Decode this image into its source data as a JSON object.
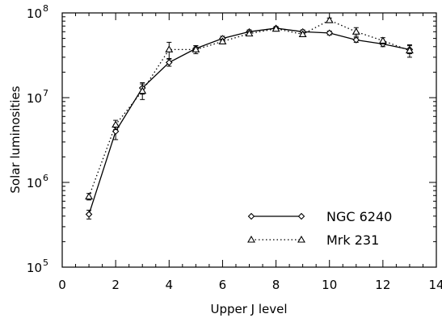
{
  "chart_data": {
    "type": "line",
    "xlabel": "Upper J level",
    "ylabel": "Solar luminosities",
    "xlim": [
      0,
      14
    ],
    "ylim": [
      100000,
      100000000
    ],
    "yscale": "log",
    "x_ticks": [
      "0",
      "2",
      "4",
      "6",
      "8",
      "10",
      "12",
      "14"
    ],
    "y_ticks": [
      {
        "base": "10",
        "exp": "5"
      },
      {
        "base": "10",
        "exp": "6"
      },
      {
        "base": "10",
        "exp": "7"
      },
      {
        "base": "10",
        "exp": "8"
      }
    ],
    "grid": false,
    "legend_position": "bottom-right",
    "series": [
      {
        "name": "NGC 6240",
        "marker": "diamond",
        "line_style": "solid",
        "x": [
          1,
          2,
          3,
          4,
          5,
          6,
          7,
          8,
          9,
          10,
          11,
          12,
          13
        ],
        "y": [
          420000,
          4000000,
          13000000,
          26000000,
          38000000,
          50000000,
          60000000,
          66000000,
          60000000,
          58000000,
          48000000,
          43000000,
          37000000
        ],
        "err": [
          50000,
          800000,
          2000000,
          2500000,
          3000000,
          3000000,
          3000000,
          3000000,
          3000000,
          3000000,
          3000000,
          3000000,
          4000000
        ]
      },
      {
        "name": "Mrk 231",
        "marker": "triangle",
        "line_style": "dotted",
        "x": [
          1,
          2,
          3,
          4,
          5,
          6,
          7,
          8,
          9,
          10,
          11,
          12,
          13
        ],
        "y": [
          680000,
          4800000,
          12000000,
          37000000,
          37000000,
          46000000,
          57000000,
          65000000,
          56000000,
          82000000,
          60000000,
          47000000,
          36000000
        ],
        "err": [
          60000,
          600000,
          2500000,
          8000000,
          4000000,
          3000000,
          3000000,
          3000000,
          3000000,
          5000000,
          7000000,
          4000000,
          6000000
        ]
      }
    ]
  }
}
